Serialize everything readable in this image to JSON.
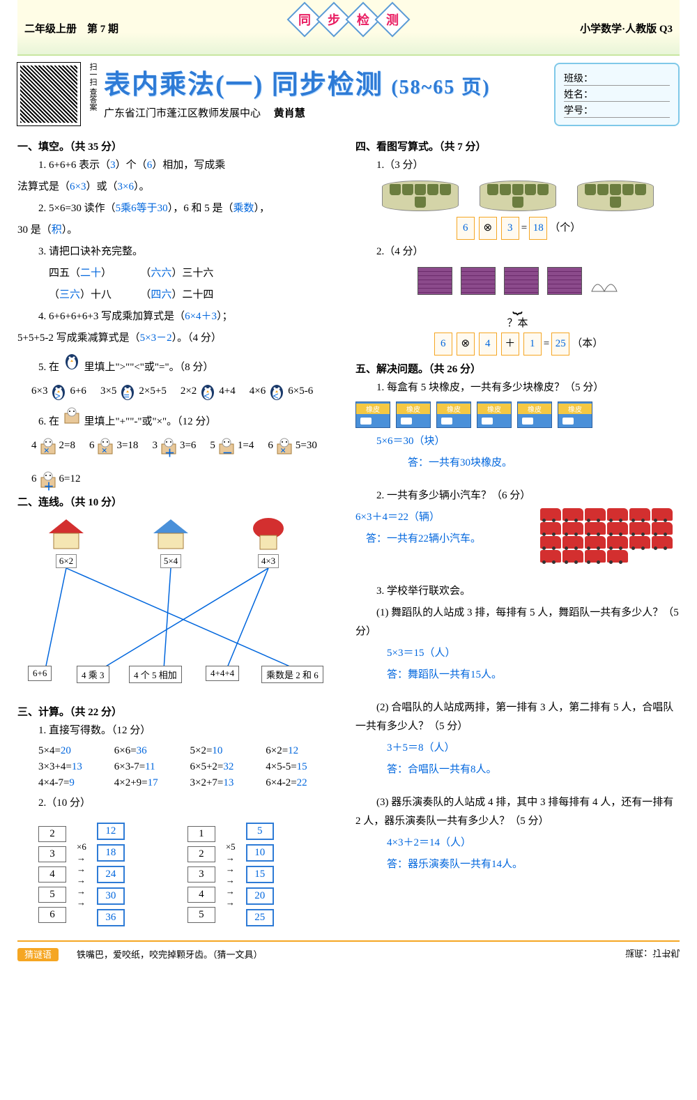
{
  "header": {
    "left": "二年级上册　第 7 期",
    "right": "小学数学·人教版 Q3",
    "banner_chars": [
      "同",
      "步",
      "检",
      "测"
    ]
  },
  "title": {
    "main": "表内乘法(一) 同步检测",
    "range": "(58~65 页)",
    "author_org": "广东省江门市蓬江区教师发展中心",
    "author_name": "黄肖慧",
    "qr_label": "扫一扫 查答案"
  },
  "info": {
    "class": "班级：",
    "name": "姓名：",
    "id": "学号："
  },
  "sec1": {
    "head": "一、填空。（共 35 分）",
    "q1a": "1. 6+6+6 表示（",
    "q1a_ans": "3",
    "q1b": "）个（",
    "q1b_ans": "6",
    "q1c": "）相加，写成乘",
    "q1d": "法算式是（",
    "q1d_ans": "6×3",
    "q1e": "）或（",
    "q1e_ans": "3×6",
    "q1f": "）。",
    "q2a": "2. 5×6=30 读作（",
    "q2a_ans": "5乘6等于30",
    "q2b": "），6 和 5 是（",
    "q2b_ans": "乘数",
    "q2c": "），",
    "q2d": "30 是（",
    "q2d_ans": "积",
    "q2e": "）。",
    "q3": "3. 请把口诀补充完整。",
    "q3_1a": "四五（",
    "q3_1a_ans": "二十",
    "q3_1b": "）",
    "q3_2a": "（",
    "q3_2a_ans": "六六",
    "q3_2b": "）三十六",
    "q3_3a": "（",
    "q3_3a_ans": "三六",
    "q3_3b": "）十八",
    "q3_4a": "（",
    "q3_4a_ans": "四六",
    "q3_4b": "）二十四",
    "q4a": "4. 6+6+6+6+3 写成乘加算式是（",
    "q4a_ans": "6×4＋3",
    "q4b": "）；",
    "q4c": "5+5+5-2 写成乘减算式是（",
    "q4c_ans": "5×3－2",
    "q4d": "）。（4 分）",
    "q5": "5. 在",
    "q5b": "里填上\">\"\"<\"或\"=\"。（8 分）",
    "q5_items": [
      {
        "l": "6×3",
        "op": ">",
        "r": "6+6"
      },
      {
        "l": "3×5",
        "op": "=",
        "r": "2×5+5"
      },
      {
        "l": "2×2",
        "op": "<",
        "r": "4+4"
      },
      {
        "l": "4×6",
        "op": "<",
        "r": "6×5-6"
      }
    ],
    "q6": "6. 在",
    "q6b": "里填上\"+\"\"-\"或\"×\"。（12 分）",
    "q6_items": [
      {
        "l": "4",
        "op": "×",
        "r": "2=8"
      },
      {
        "l": "6",
        "op": "×",
        "r": "3=18"
      },
      {
        "l": "3",
        "op": "＋",
        "r": "3=6"
      },
      {
        "l": "5",
        "op": "－",
        "r": "1=4"
      },
      {
        "l": "6",
        "op": "×",
        "r": "5=30"
      },
      {
        "l": "6",
        "op": "＋",
        "r": "6=12"
      }
    ]
  },
  "sec2": {
    "head": "二、连线。（共 10 分）",
    "houses": [
      {
        "label": "6×2"
      },
      {
        "label": "5×4"
      },
      {
        "label": "4×3"
      }
    ],
    "bottoms": [
      "6+6",
      "4 乘 3",
      "4 个 5 相加",
      "4+4+4",
      "乘数是 2 和 6"
    ]
  },
  "sec3": {
    "head": "三、计算。（共 22 分）",
    "q1": "1. 直接写得数。（12 分）",
    "q1_items": [
      {
        "e": "5×4=",
        "a": "20"
      },
      {
        "e": "6×6=",
        "a": "36"
      },
      {
        "e": "5×2=",
        "a": "10"
      },
      {
        "e": "6×2=",
        "a": "12"
      },
      {
        "e": "3×3+4=",
        "a": "13"
      },
      {
        "e": "6×3-7=",
        "a": "11"
      },
      {
        "e": "6×5+2=",
        "a": "32"
      },
      {
        "e": "4×5-5=",
        "a": "15"
      },
      {
        "e": "4×4-7=",
        "a": "9"
      },
      {
        "e": "4×2+9=",
        "a": "17"
      },
      {
        "e": "3×2+7=",
        "a": "13"
      },
      {
        "e": "6×4-2=",
        "a": "22"
      }
    ],
    "q2": "2.（10 分）",
    "chain1": {
      "mult": "×6",
      "in": [
        "2",
        "3",
        "4",
        "5",
        "6"
      ],
      "out": [
        "12",
        "18",
        "24",
        "30",
        "36"
      ]
    },
    "chain2": {
      "mult": "×5",
      "in": [
        "1",
        "2",
        "3",
        "4",
        "5"
      ],
      "out": [
        "5",
        "10",
        "15",
        "20",
        "25"
      ]
    }
  },
  "sec4": {
    "head": "四、看图写算式。（共 7 分）",
    "q1": "1.（3 分）",
    "q1_eq": {
      "a": "6",
      "op": "⊗",
      "b": "3",
      "eq": "=",
      "res": "18",
      "unit": "（个）"
    },
    "q2": "2.（4 分）",
    "q2_label": "？本",
    "q2_eq": {
      "a": "6",
      "op1": "⊗",
      "b": "4",
      "op2": "＋",
      "c": "1",
      "eq": "=",
      "res": "25",
      "unit": "（本）"
    }
  },
  "sec5": {
    "head": "五、解决问题。（共 26 分）",
    "q1": "1. 每盒有 5 块橡皮，一共有多少块橡皮？（5 分）",
    "q1_calc": "5×6＝30（块）",
    "q1_ans": "答：一共有30块橡皮。",
    "q2": "2. 一共有多少辆小汽车？（6 分）",
    "q2_calc": "6×3＋4＝22（辆）",
    "q2_ans": "答：一共有22辆小汽车。",
    "q3": "3. 学校举行联欢会。",
    "q3_1": "(1) 舞蹈队的人站成 3 排，每排有 5 人，舞蹈队一共有多少人？（5 分）",
    "q3_1_calc": "5×3＝15（人）",
    "q3_1_ans": "答：舞蹈队一共有15人。",
    "q3_2": "(2) 合唱队的人站成两排，第一排有 3 人，第二排有 5 人，合唱队一共有多少人？（5 分）",
    "q3_2_calc": "3＋5＝8（人）",
    "q3_2_ans": "答：合唱队一共有8人。",
    "q3_3": "(3) 器乐演奏队的人站成 4 排，其中 3 排每排有 4 人，还有一排有 2 人，器乐演奏队一共有多少人？（5 分）",
    "q3_3_calc": "4×3＋2＝14（人）",
    "q3_3_ans": "答：器乐演奏队一共有14人。"
  },
  "footer": {
    "riddle_label": "猜谜语",
    "riddle": "铁嘴巴，爱咬纸，咬完掉颗牙齿。（猜一文具）",
    "upside": "谜底：订书机"
  }
}
